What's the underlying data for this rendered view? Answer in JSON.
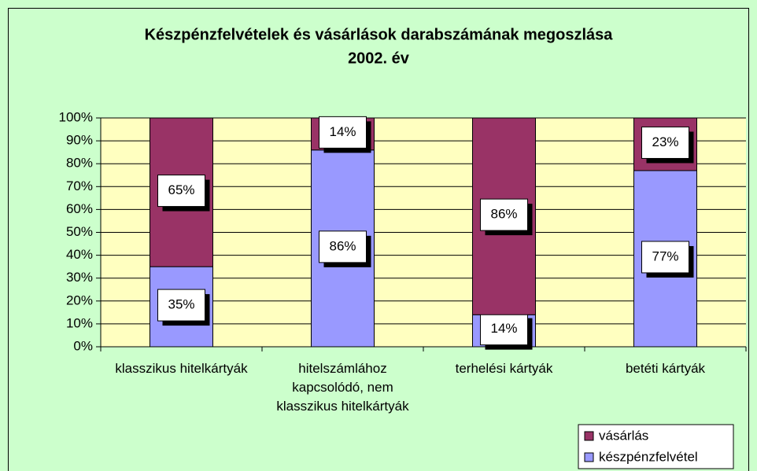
{
  "chart_data": {
    "type": "stacked_bar",
    "title": "Készpénzfelvételek és vásárlások darabszámának megoszlása",
    "subtitle": "2002. év",
    "categories": [
      "klasszikus hitelkártyák",
      "hitelszámlához kapcsolódó, nem klasszikus hitelkártyák",
      "terhelési kártyák",
      "betéti kártyák"
    ],
    "series": [
      {
        "name": "készpénzfelvétel",
        "color": "#9999ff",
        "values": [
          35,
          86,
          14,
          77
        ],
        "value_labels": [
          "35%",
          "86%",
          "14%",
          "77%"
        ]
      },
      {
        "name": "vásárlás",
        "color": "#993366",
        "values": [
          65,
          14,
          86,
          23
        ],
        "value_labels": [
          "65%",
          "14%",
          "86%",
          "23%"
        ]
      }
    ],
    "ylim": [
      0,
      100
    ],
    "yticks": [
      {
        "value": 0,
        "label": "0%"
      },
      {
        "value": 10,
        "label": "10%"
      },
      {
        "value": 20,
        "label": "20%"
      },
      {
        "value": 30,
        "label": "30%"
      },
      {
        "value": 40,
        "label": "40%"
      },
      {
        "value": 50,
        "label": "50%"
      },
      {
        "value": 60,
        "label": "60%"
      },
      {
        "value": 70,
        "label": "70%"
      },
      {
        "value": 80,
        "label": "80%"
      },
      {
        "value": 90,
        "label": "90%"
      },
      {
        "value": 100,
        "label": "100%"
      }
    ],
    "grid": true,
    "legend": "bottom-right"
  }
}
